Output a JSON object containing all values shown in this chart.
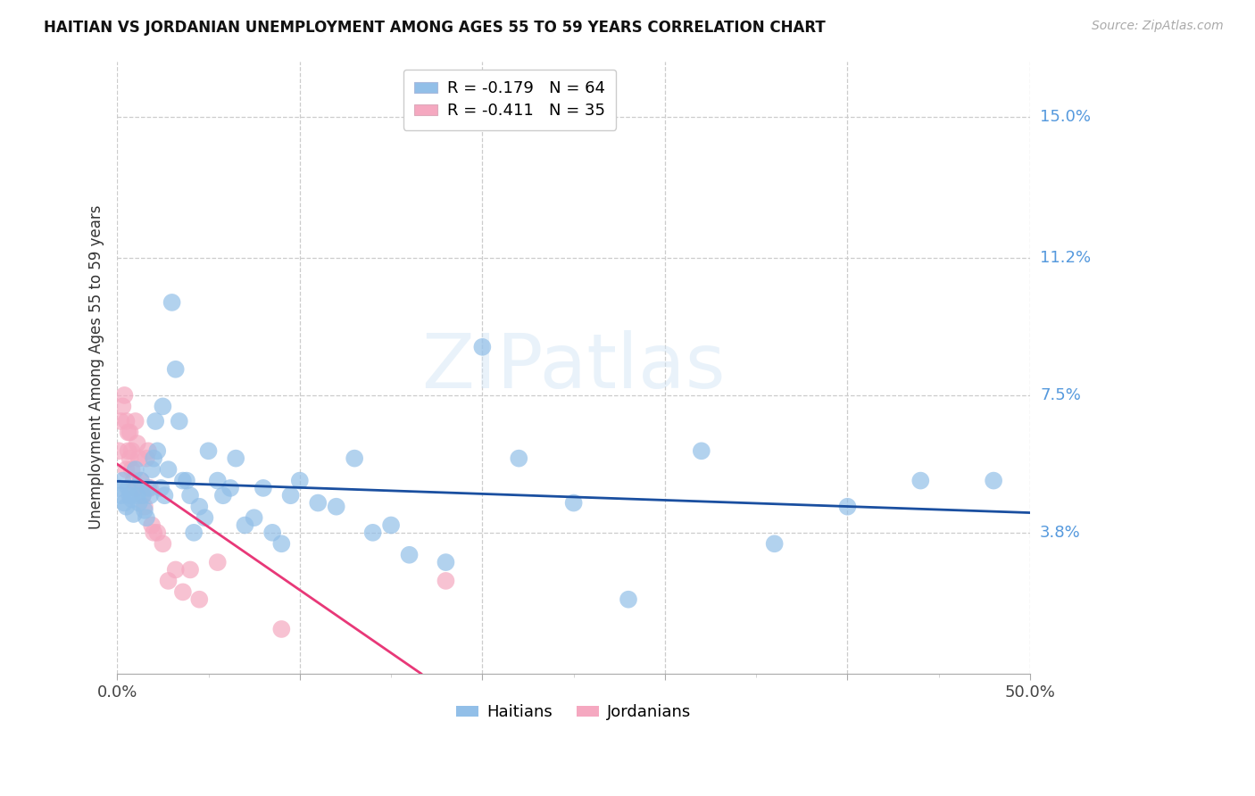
{
  "title": "HAITIAN VS JORDANIAN UNEMPLOYMENT AMONG AGES 55 TO 59 YEARS CORRELATION CHART",
  "source": "Source: ZipAtlas.com",
  "ylabel": "Unemployment Among Ages 55 to 59 years",
  "xlim": [
    0.0,
    0.5
  ],
  "ylim": [
    0.0,
    0.165
  ],
  "ytick_positions": [
    0.038,
    0.075,
    0.112,
    0.15
  ],
  "ytick_labels": [
    "3.8%",
    "7.5%",
    "11.2%",
    "15.0%"
  ],
  "legend_R": [
    "R = -0.179",
    "R = -0.411"
  ],
  "legend_N": [
    "N = 64",
    "N = 35"
  ],
  "haitian_color": "#92bfe8",
  "jordanian_color": "#f5a8c0",
  "haitian_line_color": "#1a4fa0",
  "jordanian_line_color": "#e83878",
  "background_color": "#ffffff",
  "watermark": "ZIPatlas",
  "haitian_x": [
    0.001,
    0.002,
    0.003,
    0.004,
    0.005,
    0.006,
    0.007,
    0.008,
    0.009,
    0.01,
    0.01,
    0.011,
    0.012,
    0.013,
    0.014,
    0.015,
    0.016,
    0.017,
    0.018,
    0.019,
    0.02,
    0.021,
    0.022,
    0.024,
    0.025,
    0.026,
    0.028,
    0.03,
    0.032,
    0.034,
    0.036,
    0.038,
    0.04,
    0.042,
    0.045,
    0.048,
    0.05,
    0.055,
    0.058,
    0.062,
    0.065,
    0.07,
    0.075,
    0.08,
    0.085,
    0.09,
    0.095,
    0.1,
    0.11,
    0.12,
    0.13,
    0.14,
    0.15,
    0.16,
    0.18,
    0.2,
    0.22,
    0.25,
    0.28,
    0.32,
    0.36,
    0.4,
    0.44,
    0.48
  ],
  "haitian_y": [
    0.05,
    0.048,
    0.052,
    0.046,
    0.045,
    0.05,
    0.048,
    0.047,
    0.043,
    0.05,
    0.055,
    0.048,
    0.046,
    0.052,
    0.048,
    0.044,
    0.042,
    0.05,
    0.048,
    0.055,
    0.058,
    0.068,
    0.06,
    0.05,
    0.072,
    0.048,
    0.055,
    0.1,
    0.082,
    0.068,
    0.052,
    0.052,
    0.048,
    0.038,
    0.045,
    0.042,
    0.06,
    0.052,
    0.048,
    0.05,
    0.058,
    0.04,
    0.042,
    0.05,
    0.038,
    0.035,
    0.048,
    0.052,
    0.046,
    0.045,
    0.058,
    0.038,
    0.04,
    0.032,
    0.03,
    0.088,
    0.058,
    0.046,
    0.02,
    0.06,
    0.035,
    0.045,
    0.052,
    0.052
  ],
  "jordanian_x": [
    0.001,
    0.002,
    0.003,
    0.004,
    0.005,
    0.005,
    0.006,
    0.006,
    0.007,
    0.007,
    0.008,
    0.008,
    0.009,
    0.01,
    0.01,
    0.011,
    0.012,
    0.013,
    0.014,
    0.015,
    0.016,
    0.017,
    0.018,
    0.019,
    0.02,
    0.022,
    0.025,
    0.028,
    0.032,
    0.036,
    0.04,
    0.045,
    0.055,
    0.09,
    0.18
  ],
  "jordanian_y": [
    0.06,
    0.068,
    0.072,
    0.075,
    0.068,
    0.055,
    0.065,
    0.06,
    0.058,
    0.065,
    0.055,
    0.06,
    0.052,
    0.05,
    0.068,
    0.062,
    0.058,
    0.052,
    0.048,
    0.045,
    0.058,
    0.06,
    0.05,
    0.04,
    0.038,
    0.038,
    0.035,
    0.025,
    0.028,
    0.022,
    0.028,
    0.02,
    0.03,
    0.012,
    0.025
  ]
}
